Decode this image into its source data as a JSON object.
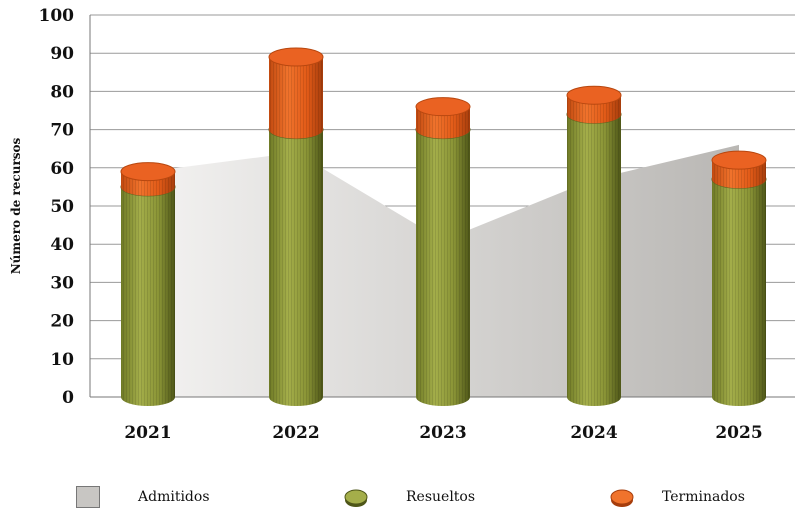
{
  "chart_data": {
    "type": "bar",
    "ylabel": "Número de recursos",
    "ylim": [
      0,
      100
    ],
    "yticks": [
      "0",
      "10",
      "20",
      "30",
      "40",
      "50",
      "60",
      "70",
      "80",
      "90",
      "100"
    ],
    "categories": [
      "2021",
      "2022",
      "2023",
      "2024",
      "2025"
    ],
    "series": [
      {
        "name": "Admitidos",
        "type": "area",
        "color": "#c8c6c3",
        "values": [
          59,
          64,
          41,
          57,
          66
        ]
      },
      {
        "name": "Resueltos",
        "type": "stacked-cylinder",
        "color": "#8f9a3a",
        "values": [
          55,
          70,
          70,
          74,
          57
        ]
      },
      {
        "name": "Terminados",
        "type": "stacked-cylinder",
        "color": "#e65a17",
        "values": [
          4,
          19,
          6,
          5,
          5
        ]
      }
    ],
    "grid": true,
    "legend_position": "bottom"
  },
  "legend": {
    "items": [
      {
        "label": "Admitidos",
        "icon": "grey-square-swatch"
      },
      {
        "label": "Resueltos",
        "icon": "olive-coin-swatch"
      },
      {
        "label": "Terminados",
        "icon": "orange-coin-swatch"
      }
    ]
  }
}
